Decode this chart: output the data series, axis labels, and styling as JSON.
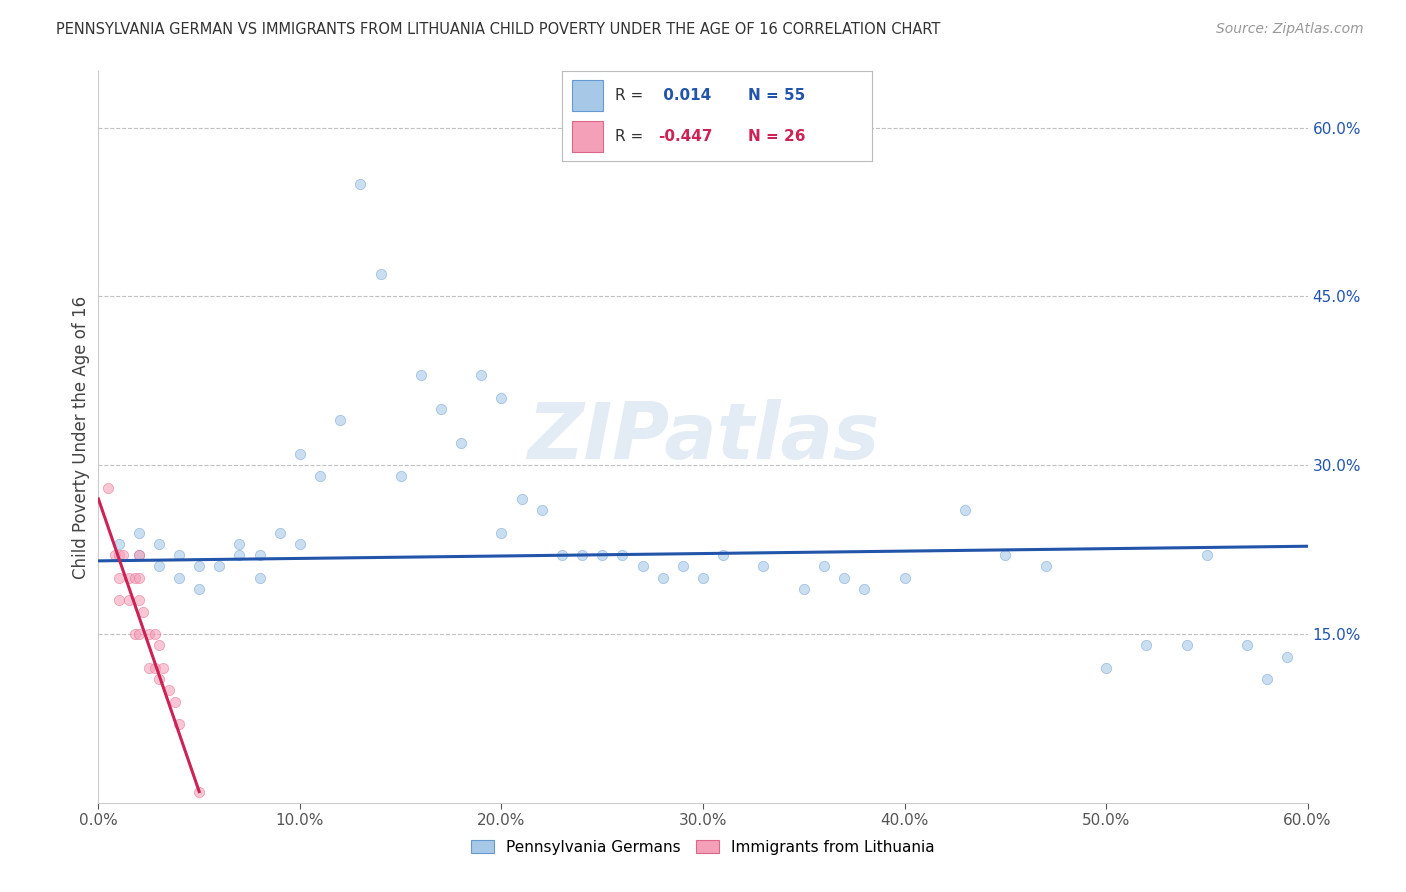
{
  "title": "PENNSYLVANIA GERMAN VS IMMIGRANTS FROM LITHUANIA CHILD POVERTY UNDER THE AGE OF 16 CORRELATION CHART",
  "source": "Source: ZipAtlas.com",
  "ylabel": "Child Poverty Under the Age of 16",
  "xlim": [
    0.0,
    0.6
  ],
  "ylim": [
    0.0,
    0.65
  ],
  "x_ticks": [
    0.0,
    0.1,
    0.2,
    0.3,
    0.4,
    0.5,
    0.6
  ],
  "x_tick_labels": [
    "0.0%",
    "",
    "",
    "",
    "",
    "",
    "60.0%"
  ],
  "y_tick_positions": [
    0.15,
    0.3,
    0.45,
    0.6
  ],
  "y_tick_labels": [
    "15.0%",
    "30.0%",
    "45.0%",
    "60.0%"
  ],
  "legend_items": [
    {
      "label": "Pennsylvania Germans",
      "color": "#a8c8e8",
      "R": "0.014",
      "N": "55"
    },
    {
      "label": "Immigrants from Lithuania",
      "color": "#f4a0b8",
      "R": "-0.447",
      "N": "26"
    }
  ],
  "blue_scatter": [
    [
      0.01,
      0.23
    ],
    [
      0.02,
      0.24
    ],
    [
      0.02,
      0.22
    ],
    [
      0.03,
      0.21
    ],
    [
      0.03,
      0.23
    ],
    [
      0.04,
      0.2
    ],
    [
      0.04,
      0.22
    ],
    [
      0.05,
      0.21
    ],
    [
      0.05,
      0.19
    ],
    [
      0.06,
      0.21
    ],
    [
      0.07,
      0.23
    ],
    [
      0.07,
      0.22
    ],
    [
      0.08,
      0.22
    ],
    [
      0.08,
      0.2
    ],
    [
      0.09,
      0.24
    ],
    [
      0.1,
      0.23
    ],
    [
      0.1,
      0.31
    ],
    [
      0.11,
      0.29
    ],
    [
      0.12,
      0.34
    ],
    [
      0.13,
      0.55
    ],
    [
      0.14,
      0.47
    ],
    [
      0.15,
      0.29
    ],
    [
      0.16,
      0.38
    ],
    [
      0.17,
      0.35
    ],
    [
      0.18,
      0.32
    ],
    [
      0.19,
      0.38
    ],
    [
      0.2,
      0.36
    ],
    [
      0.2,
      0.24
    ],
    [
      0.21,
      0.27
    ],
    [
      0.22,
      0.26
    ],
    [
      0.23,
      0.22
    ],
    [
      0.24,
      0.22
    ],
    [
      0.25,
      0.22
    ],
    [
      0.26,
      0.22
    ],
    [
      0.27,
      0.21
    ],
    [
      0.28,
      0.2
    ],
    [
      0.29,
      0.21
    ],
    [
      0.3,
      0.2
    ],
    [
      0.31,
      0.22
    ],
    [
      0.33,
      0.21
    ],
    [
      0.35,
      0.19
    ],
    [
      0.36,
      0.21
    ],
    [
      0.37,
      0.2
    ],
    [
      0.38,
      0.19
    ],
    [
      0.4,
      0.2
    ],
    [
      0.43,
      0.26
    ],
    [
      0.45,
      0.22
    ],
    [
      0.47,
      0.21
    ],
    [
      0.5,
      0.12
    ],
    [
      0.52,
      0.14
    ],
    [
      0.54,
      0.14
    ],
    [
      0.55,
      0.22
    ],
    [
      0.57,
      0.14
    ],
    [
      0.58,
      0.11
    ],
    [
      0.59,
      0.13
    ]
  ],
  "pink_scatter": [
    [
      0.005,
      0.28
    ],
    [
      0.008,
      0.22
    ],
    [
      0.01,
      0.22
    ],
    [
      0.01,
      0.2
    ],
    [
      0.01,
      0.18
    ],
    [
      0.012,
      0.22
    ],
    [
      0.015,
      0.2
    ],
    [
      0.015,
      0.18
    ],
    [
      0.018,
      0.2
    ],
    [
      0.018,
      0.15
    ],
    [
      0.02,
      0.22
    ],
    [
      0.02,
      0.2
    ],
    [
      0.02,
      0.18
    ],
    [
      0.02,
      0.15
    ],
    [
      0.022,
      0.17
    ],
    [
      0.025,
      0.15
    ],
    [
      0.025,
      0.12
    ],
    [
      0.028,
      0.15
    ],
    [
      0.028,
      0.12
    ],
    [
      0.03,
      0.14
    ],
    [
      0.03,
      0.11
    ],
    [
      0.032,
      0.12
    ],
    [
      0.035,
      0.1
    ],
    [
      0.038,
      0.09
    ],
    [
      0.04,
      0.07
    ],
    [
      0.05,
      0.01
    ]
  ],
  "blue_line": [
    [
      0.0,
      0.215
    ],
    [
      0.6,
      0.228
    ]
  ],
  "pink_line": [
    [
      0.0,
      0.27
    ],
    [
      0.05,
      0.01
    ]
  ],
  "watermark": "ZIPatlas",
  "background_color": "#ffffff",
  "grid_color": "#bbbbbb",
  "scatter_size": 55,
  "scatter_alpha": 0.6,
  "blue_color": "#a8c8e8",
  "blue_edge_color": "#6699cc",
  "pink_color": "#f4a0b8",
  "pink_edge_color": "#dd6688",
  "blue_line_color": "#2255aa",
  "pink_line_color": "#cc2255"
}
